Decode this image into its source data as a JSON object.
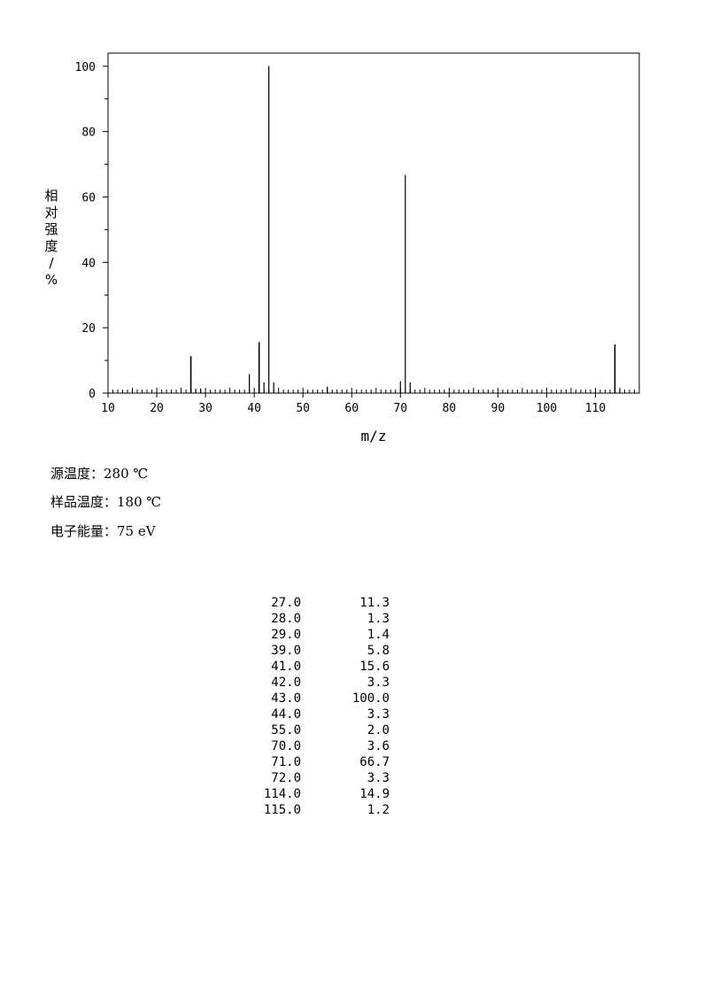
{
  "chart_data": {
    "type": "bar",
    "xlabel": "m/z",
    "ylabel": "相对强度/%",
    "xlim": [
      10,
      119
    ],
    "ylim": [
      0,
      104
    ],
    "x_ticks": [
      10,
      20,
      30,
      40,
      50,
      60,
      70,
      80,
      90,
      100,
      110
    ],
    "y_ticks": [
      0,
      20,
      40,
      60,
      80,
      100
    ],
    "peaks": [
      {
        "mz": 27.0,
        "intensity": 11.3
      },
      {
        "mz": 28.0,
        "intensity": 1.3
      },
      {
        "mz": 29.0,
        "intensity": 1.4
      },
      {
        "mz": 39.0,
        "intensity": 5.8
      },
      {
        "mz": 41.0,
        "intensity": 15.6
      },
      {
        "mz": 42.0,
        "intensity": 3.3
      },
      {
        "mz": 43.0,
        "intensity": 100.0
      },
      {
        "mz": 44.0,
        "intensity": 3.3
      },
      {
        "mz": 55.0,
        "intensity": 2.0
      },
      {
        "mz": 70.0,
        "intensity": 3.6
      },
      {
        "mz": 71.0,
        "intensity": 66.7
      },
      {
        "mz": 72.0,
        "intensity": 3.3
      },
      {
        "mz": 114.0,
        "intensity": 14.9
      },
      {
        "mz": 115.0,
        "intensity": 1.2
      }
    ]
  },
  "conditions": {
    "source_temp": "源温度：280 ℃",
    "sample_temp": "样品温度：180 ℃",
    "electron_energy": "电子能量：75 eV"
  },
  "peak_table": [
    {
      "mz": "27.0",
      "intensity": "11.3"
    },
    {
      "mz": "28.0",
      "intensity": "1.3"
    },
    {
      "mz": "29.0",
      "intensity": "1.4"
    },
    {
      "mz": "39.0",
      "intensity": "5.8"
    },
    {
      "mz": "41.0",
      "intensity": "15.6"
    },
    {
      "mz": "42.0",
      "intensity": "3.3"
    },
    {
      "mz": "43.0",
      "intensity": "100.0"
    },
    {
      "mz": "44.0",
      "intensity": "3.3"
    },
    {
      "mz": "55.0",
      "intensity": "2.0"
    },
    {
      "mz": "70.0",
      "intensity": "3.6"
    },
    {
      "mz": "71.0",
      "intensity": "66.7"
    },
    {
      "mz": "72.0",
      "intensity": "3.3"
    },
    {
      "mz": "114.0",
      "intensity": "14.9"
    },
    {
      "mz": "115.0",
      "intensity": "1.2"
    }
  ]
}
